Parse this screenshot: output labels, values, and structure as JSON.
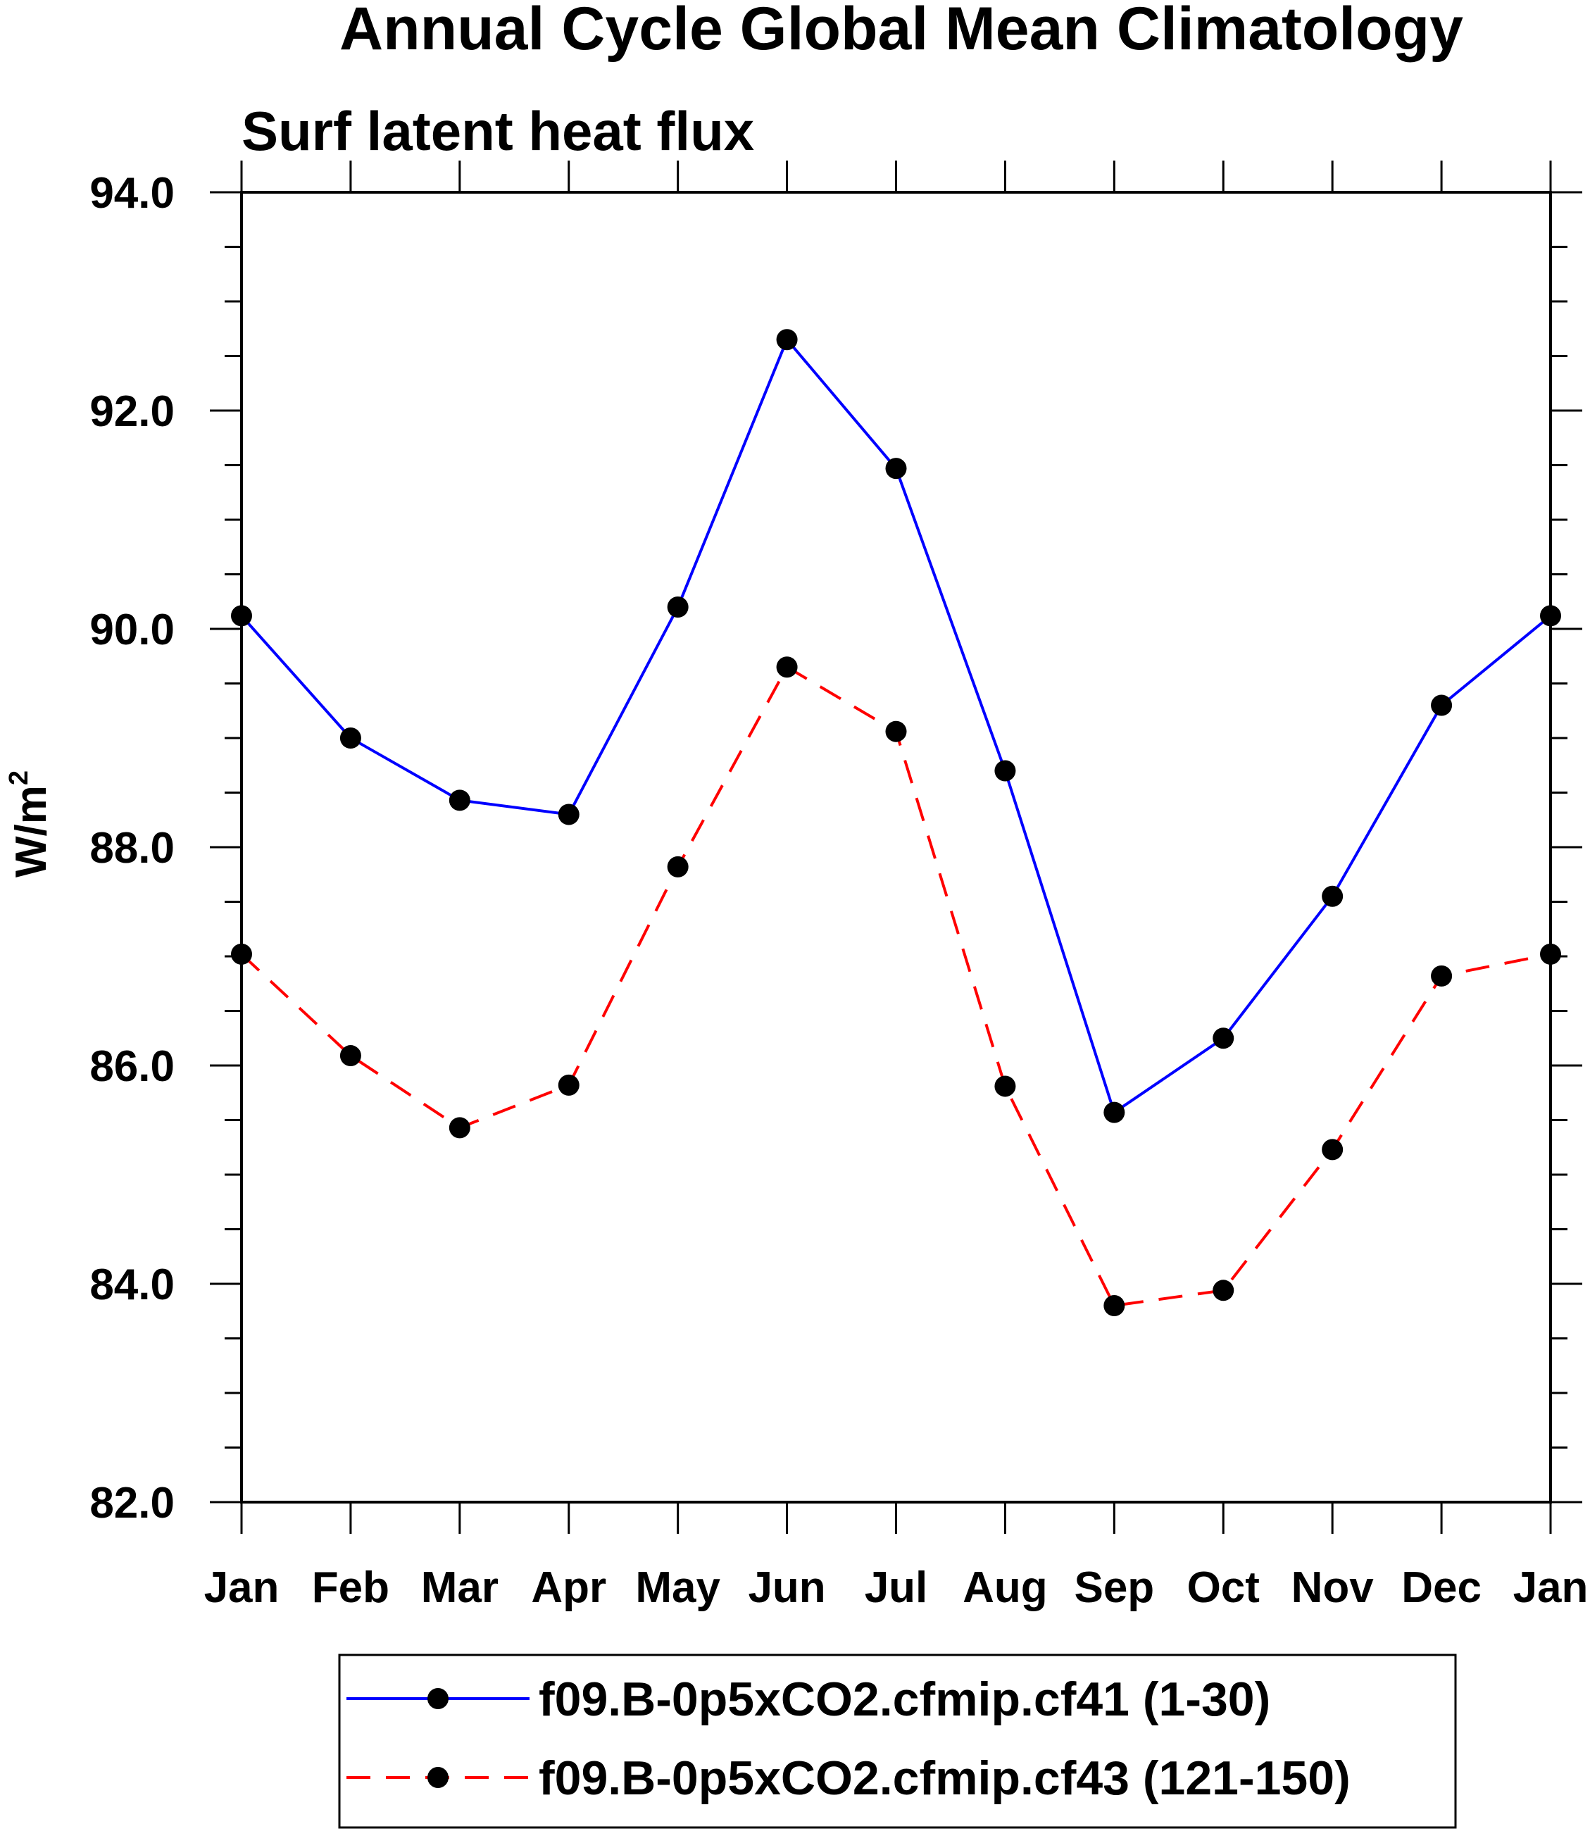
{
  "chart_data": {
    "type": "line",
    "title": "Annual Cycle Global Mean Climatology",
    "subtitle": "Surf latent heat flux",
    "ylabel": "W/m",
    "ylabel_superscript": "2",
    "xlabel": "",
    "categories": [
      "Jan",
      "Feb",
      "Mar",
      "Apr",
      "May",
      "Jun",
      "Jul",
      "Aug",
      "Sep",
      "Oct",
      "Nov",
      "Dec",
      "Jan"
    ],
    "ylim": [
      82.0,
      94.0
    ],
    "yticks": [
      "82.0",
      "84.0",
      "86.0",
      "88.0",
      "90.0",
      "92.0",
      "94.0"
    ],
    "grid": false,
    "legend_position": "bottom",
    "series": [
      {
        "name": "f09.B-0p5xCO2.cfmip.cf41 (1-30)",
        "color": "#0000ff",
        "line_style": "solid",
        "marker": "filled-circle",
        "values": [
          90.12,
          89.0,
          88.43,
          88.3,
          90.2,
          92.65,
          91.47,
          88.7,
          85.57,
          86.25,
          87.55,
          89.3,
          90.12
        ]
      },
      {
        "name": "f09.B-0p5xCO2.cfmip.cf43 (121-150)",
        "color": "#ff0000",
        "line_style": "dashed",
        "marker": "filled-circle",
        "values": [
          87.02,
          86.09,
          85.43,
          85.82,
          87.82,
          89.65,
          89.06,
          85.81,
          83.8,
          83.94,
          85.23,
          86.82,
          87.02
        ]
      }
    ]
  }
}
